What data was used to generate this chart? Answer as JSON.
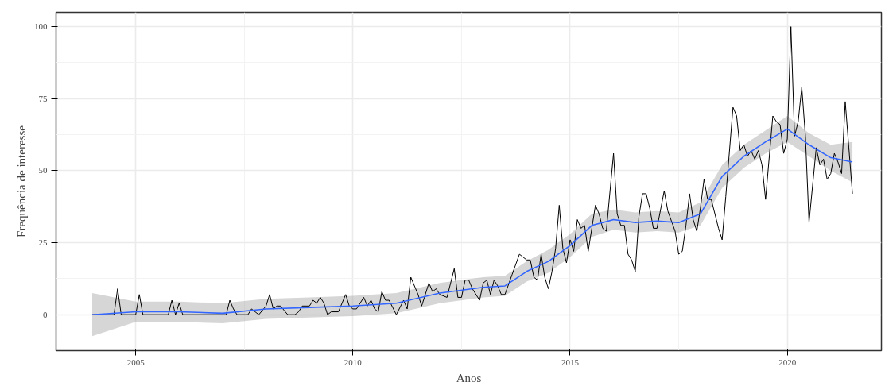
{
  "chart_data": {
    "type": "line",
    "xlabel": "Anos",
    "ylabel": "Frequência de interesse",
    "xlim": [
      "2003-03",
      "2022-03"
    ],
    "xticks": [
      "2005",
      "2010",
      "2015",
      "2020"
    ],
    "ylim": [
      -12.5,
      105
    ],
    "yticks": [
      0,
      25,
      50,
      75,
      100
    ],
    "grid": true,
    "line_style": "solid",
    "marker": "none",
    "series": [
      {
        "color": "#000000",
        "x": [
          "2004-01",
          "2004-07",
          "2004-08",
          "2004-09",
          "2005-01",
          "2005-02",
          "2005-03",
          "2005-10",
          "2005-11",
          "2005-12",
          "2006-01",
          "2006-02",
          "2007-02",
          "2007-03",
          "2007-04",
          "2007-05",
          "2007-08",
          "2007-09",
          "2007-11",
          "2008-01",
          "2008-02",
          "2008-03",
          "2008-04",
          "2008-05",
          "2008-07",
          "2008-09",
          "2008-10",
          "2008-11",
          "2009-01",
          "2009-02",
          "2009-03",
          "2009-04",
          "2009-05",
          "2009-06",
          "2009-07",
          "2009-09",
          "2009-11",
          "2009-12",
          "2010-01",
          "2010-02",
          "2010-04",
          "2010-05",
          "2010-06",
          "2010-07",
          "2010-08",
          "2010-09",
          "2010-10",
          "2010-11",
          "2011-01",
          "2011-03",
          "2011-04",
          "2011-05",
          "2011-07",
          "2011-08",
          "2011-10",
          "2011-11",
          "2011-12",
          "2012-01",
          "2012-03",
          "2012-05",
          "2012-06",
          "2012-07",
          "2012-08",
          "2012-09",
          "2012-10",
          "2012-12",
          "2013-01",
          "2013-02",
          "2013-03",
          "2013-04",
          "2013-05",
          "2013-06",
          "2013-07",
          "2013-09",
          "2013-11",
          "2014-01",
          "2014-02",
          "2014-03",
          "2014-04",
          "2014-05",
          "2014-06",
          "2014-07",
          "2014-08",
          "2014-09",
          "2014-10",
          "2014-11",
          "2014-12",
          "2015-01",
          "2015-02",
          "2015-03",
          "2015-04",
          "2015-05",
          "2015-06",
          "2015-08",
          "2015-09",
          "2015-10",
          "2015-11",
          "2016-01",
          "2016-02",
          "2016-03",
          "2016-04",
          "2016-05",
          "2016-06",
          "2016-07",
          "2016-08",
          "2016-09",
          "2016-10",
          "2016-11",
          "2016-12",
          "2017-01",
          "2017-03",
          "2017-04",
          "2017-06",
          "2017-07",
          "2017-08",
          "2017-09",
          "2017-10",
          "2017-11",
          "2017-12",
          "2018-01",
          "2018-02",
          "2018-03",
          "2018-04",
          "2018-05",
          "2018-06",
          "2018-07",
          "2018-08",
          "2018-10",
          "2018-11",
          "2018-12",
          "2019-01",
          "2019-02",
          "2019-03",
          "2019-04",
          "2019-05",
          "2019-06",
          "2019-07",
          "2019-09",
          "2019-10",
          "2019-11",
          "2019-12",
          "2020-01",
          "2020-02",
          "2020-03",
          "2020-04",
          "2020-05",
          "2020-06",
          "2020-07",
          "2020-09",
          "2020-10",
          "2020-11",
          "2020-12",
          "2021-01",
          "2021-02",
          "2021-03",
          "2021-04",
          "2021-05",
          "2021-06",
          "2021-07"
        ],
        "values": [
          0,
          0,
          9,
          0,
          0,
          7,
          0,
          0,
          5,
          0,
          4,
          0,
          0,
          5,
          2,
          0,
          0,
          2,
          0,
          3,
          7,
          2,
          3,
          3,
          0,
          0,
          1,
          3,
          3,
          5,
          4,
          6,
          4,
          0,
          1,
          1,
          7,
          3,
          2,
          2,
          6,
          3,
          5,
          2,
          1,
          8,
          5,
          5,
          0,
          5,
          2,
          13,
          7,
          3,
          11,
          8,
          9,
          7,
          6,
          16,
          6,
          6,
          12,
          12,
          9,
          5,
          11,
          12,
          7,
          12,
          10,
          7,
          7,
          14,
          21,
          19,
          19,
          13,
          12,
          21,
          13,
          9,
          15,
          23,
          38,
          23,
          18,
          26,
          22,
          33,
          30,
          31,
          22,
          38,
          35,
          30,
          29,
          56,
          35,
          31,
          31,
          21,
          19,
          15,
          34,
          42,
          42,
          37,
          30,
          30,
          43,
          36,
          29,
          21,
          22,
          31,
          42,
          33,
          29,
          37,
          47,
          40,
          40,
          35,
          30,
          26,
          41,
          72,
          69,
          57,
          59,
          55,
          57,
          54,
          57,
          52,
          40,
          69,
          67,
          66,
          56,
          61,
          100,
          62,
          67,
          79,
          62,
          32,
          58,
          52,
          54,
          47,
          49,
          56,
          53,
          49,
          74,
          58,
          42
        ]
      },
      {
        "color": "#3366ff",
        "x": [
          "2004-01",
          "2005",
          "2006",
          "2007",
          "2008",
          "2009",
          "2010",
          "2011",
          "2012",
          "2013",
          "2013-07",
          "2014",
          "2014-07",
          "2015",
          "2015-07",
          "2016",
          "2016-07",
          "2017",
          "2017-07",
          "2018",
          "2018-07",
          "2019",
          "2019-07",
          "2020",
          "2020-07",
          "2021",
          "2021-07"
        ],
        "values": [
          0,
          1,
          1,
          0.5,
          2,
          2.5,
          3,
          4,
          7.5,
          9.5,
          10,
          15,
          18.5,
          24,
          31,
          33,
          32,
          32.5,
          32,
          35,
          48,
          55,
          60,
          64.5,
          59,
          54.5,
          53
        ],
        "lower": [
          -7.5,
          -2.5,
          -2.5,
          -3,
          -1.5,
          -1,
          -0.5,
          0.5,
          4,
          6,
          6.5,
          11.5,
          14.5,
          20,
          27,
          29.5,
          28.5,
          29,
          28.5,
          31,
          44,
          51,
          56,
          60,
          55,
          50,
          46
        ],
        "upper": [
          7.5,
          4.5,
          4.5,
          4,
          5.5,
          6,
          6.5,
          7.5,
          11,
          13,
          13.5,
          18.5,
          22.5,
          28,
          35,
          36.5,
          35.5,
          36,
          35.5,
          39,
          52,
          59,
          64,
          69,
          63,
          59,
          60
        ]
      }
    ]
  }
}
